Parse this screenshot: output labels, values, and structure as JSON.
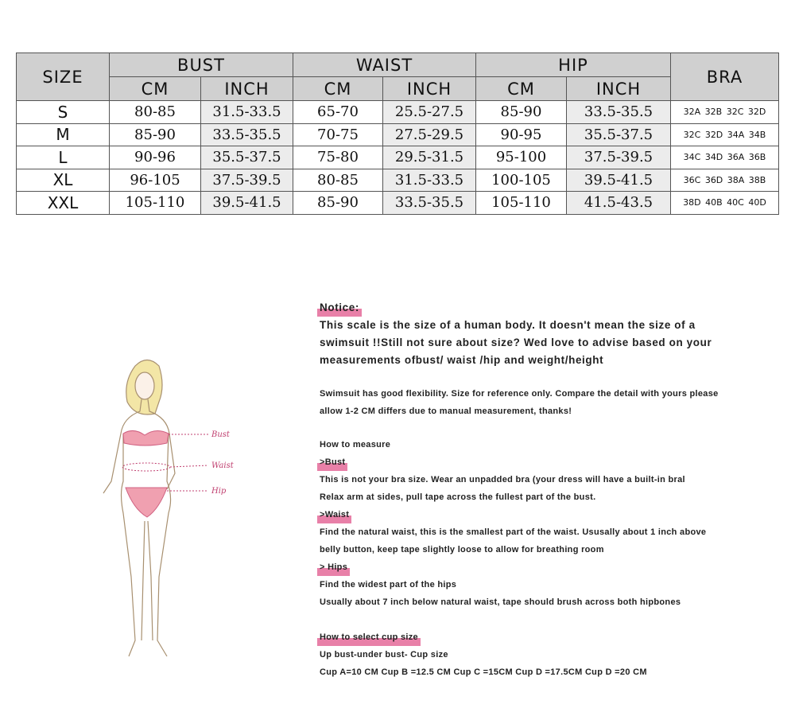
{
  "table": {
    "headers": {
      "size": "SIZE",
      "bust": "BUST",
      "waist": "WAIST",
      "hip": "HIP",
      "bra": "BRA",
      "cm": "CM",
      "inch": "INCH"
    },
    "rows": [
      [
        "S",
        "80-85",
        "31.5-33.5",
        "65-70",
        "25.5-27.5",
        "85-90",
        "33.5-35.5",
        "32A 32B 32C 32D"
      ],
      [
        "M",
        "85-90",
        "33.5-35.5",
        "70-75",
        "27.5-29.5",
        "90-95",
        "35.5-37.5",
        "32C 32D 34A 34B"
      ],
      [
        "L",
        "90-96",
        "35.5-37.5",
        "75-80",
        "29.5-31.5",
        "95-100",
        "37.5-39.5",
        "34C 34D 36A 36B"
      ],
      [
        "XL",
        "96-105",
        "37.5-39.5",
        "80-85",
        "31.5-33.5",
        "100-105",
        "39.5-41.5",
        "36C 36D 38A 38B"
      ],
      [
        "XXL",
        "105-110",
        "39.5-41.5",
        "85-90",
        "33.5-35.5",
        "105-110",
        "41.5-43.5",
        "38D 40B 40C 40D"
      ]
    ]
  },
  "figure": {
    "labels": [
      "Bust",
      "Waist",
      "Hip"
    ]
  },
  "notes": {
    "notice_title": "Notice:",
    "notice_lines": [
      "This scale is the size of a human body. It doesn't mean the size of a",
      "swimsuit !!Still not sure about size? Wed love to advise based on your",
      "measurements ofbust/ waist /hip and weight/height"
    ],
    "flex_lines": [
      "Swimsuit has good flexibility. Size for reference only. Compare the detail with yours please",
      "allow 1-2 CM differs due to manual measurement, thanks!"
    ],
    "how_to": "How to measure",
    "bust_title": ">Bust",
    "bust_lines": [
      "This is not your bra size. Wear an unpadded bra (your dress will have a built-in bral",
      "Relax arm at sides, pull tape across the fullest part of the bust."
    ],
    "waist_title": ">Waist",
    "waist_lines": [
      "Find the natural waist, this is the smallest part of the waist. Ususally about 1 inch above",
      "belly button, keep tape slightly loose to allow for breathing room"
    ],
    "hips_title": "> Hips",
    "hips_lines": [
      "Find the widest part of the hips",
      "Usually about 7 inch below natural waist, tape should brush across both hipbones"
    ],
    "cup_title": "How to select cup size",
    "cup_lines": [
      "Up bust-under bust- Cup size",
      "Cup A=10 CM Cup B =12.5 CM Cup C =15CM Cup D =17.5CM Cup D =20 CM"
    ]
  },
  "colors": {
    "highlight": "#e880a8",
    "header_bg": "#d0d0d0"
  }
}
